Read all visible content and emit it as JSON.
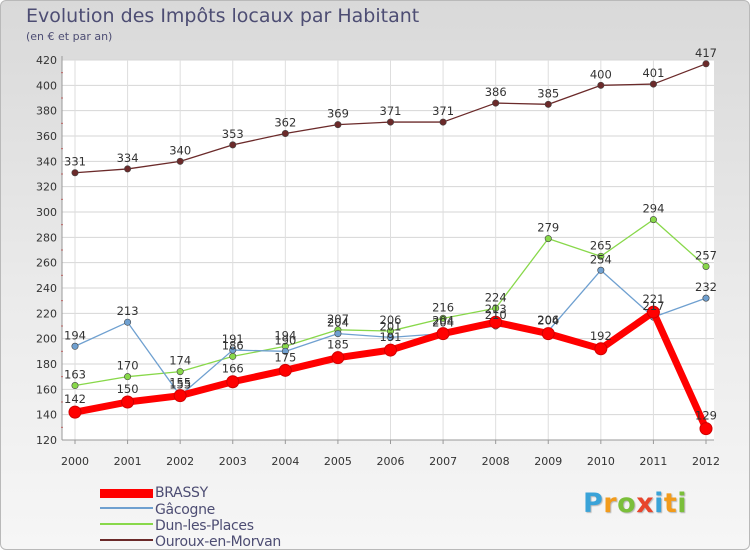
{
  "title": "Evolution des Impôts locaux par Habitant",
  "subtitle": "(en € et par an)",
  "brand": {
    "letters": [
      "P",
      "r",
      "o",
      "x",
      "i",
      "t",
      "i"
    ],
    "colors": [
      "#3aa3d8",
      "#f29b1b",
      "#7bbf3a",
      "#e8452c",
      "#3aa3d8",
      "#f29b1b",
      "#7bbf3a"
    ]
  },
  "chart_data": {
    "type": "line",
    "title": "Evolution des Impôts locaux par Habitant",
    "subtitle": "(en € et par an)",
    "xlabel": "",
    "ylabel": "",
    "ylim": [
      120,
      420
    ],
    "yticks": [
      120,
      140,
      160,
      180,
      200,
      220,
      240,
      260,
      280,
      300,
      320,
      340,
      360,
      380,
      400,
      420
    ],
    "grid": true,
    "legend_position": "bottom-left",
    "x": [
      "2000",
      "2001",
      "2002",
      "2003",
      "2004",
      "2005",
      "2006",
      "2007",
      "2008",
      "2009",
      "2010",
      "2011",
      "2012"
    ],
    "series": [
      {
        "name": "Ouroux-en-Morvan",
        "color": "#6b2a2a",
        "values": [
          331,
          334,
          340,
          353,
          362,
          369,
          371,
          371,
          386,
          385,
          400,
          401,
          417
        ]
      },
      {
        "name": "Dun-les-Places",
        "color": "#88d84a",
        "values": [
          163,
          170,
          174,
          186,
          194,
          207,
          206,
          216,
          224,
          279,
          265,
          294,
          257
        ]
      },
      {
        "name": "Gâcogne",
        "color": "#6fa0d0",
        "values": [
          194,
          213,
          155,
          191,
          190,
          204,
          201,
          204,
          210,
          206,
          254,
          217,
          232
        ]
      },
      {
        "name": "BRASSY",
        "color": "#ff0000",
        "values": [
          142,
          150,
          155,
          166,
          175,
          185,
          191,
          204,
          213,
          204,
          192,
          221,
          129
        ]
      }
    ],
    "legend": [
      "BRASSY",
      "Gâcogne",
      "Dun-les-Places",
      "Ouroux-en-Morvan"
    ]
  }
}
